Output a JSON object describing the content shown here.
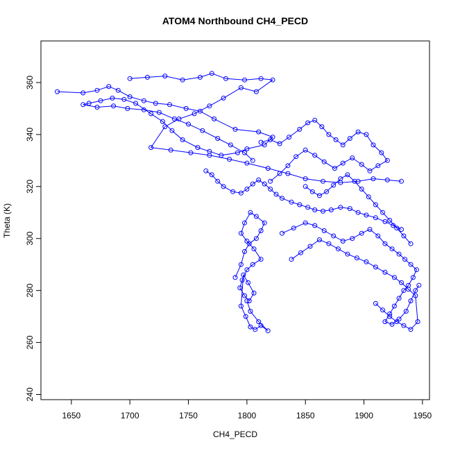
{
  "chart_data": {
    "type": "scatter",
    "title": "ATOM4 Northbound CH4_PECD",
    "xlabel": "CH4_PECD",
    "ylabel": "Theta (K)",
    "xlim": [
      1624,
      1956
    ],
    "ylim": [
      238,
      376
    ],
    "x_ticks": [
      "1650",
      "1700",
      "1750",
      "1800",
      "1850",
      "1900",
      "1950"
    ],
    "y_ticks": [
      "240",
      "260",
      "280",
      "300",
      "320",
      "340",
      "360"
    ],
    "grid": false,
    "legend": "none",
    "style": "points connected by lines",
    "color": "#0000ff",
    "series": [
      {
        "x": [
          1638,
          1660,
          1672,
          1682,
          1690,
          1700,
          1712,
          1722,
          1734,
          1748,
          1760,
          1772,
          1790,
          1810,
          1822,
          1815,
          1800,
          1792,
          1778,
          1768,
          1758,
          1745,
          1736,
          1728,
          1718,
          1705,
          1695,
          1685,
          1675,
          1665,
          1660,
          1672,
          1686,
          1698,
          1712,
          1725,
          1738,
          1750,
          1762,
          1775,
          1786,
          1798,
          1805
        ],
        "y": [
          356.5,
          356.0,
          357.0,
          358.5,
          357.0,
          354.5,
          353.0,
          352.0,
          351.5,
          350.0,
          349.0,
          346.0,
          342.0,
          341.0,
          339.0,
          336.0,
          334.5,
          333.0,
          332.0,
          333.5,
          335.0,
          338.0,
          341.5,
          345.0,
          348.0,
          352.0,
          353.5,
          354.0,
          353.0,
          352.0,
          351.5,
          350.5,
          351.0,
          350.0,
          349.5,
          348.5,
          346.0,
          344.0,
          341.5,
          338.5,
          336.0,
          333.0,
          330.0
        ]
      },
      {
        "x": [
          1700,
          1715,
          1730,
          1745,
          1760,
          1770,
          1782,
          1798,
          1812,
          1822,
          1808,
          1795,
          1780,
          1768,
          1755,
          1742,
          1730,
          1718,
          1735,
          1752,
          1768,
          1785,
          1800,
          1818,
          1835,
          1850,
          1865,
          1880,
          1895,
          1908,
          1920,
          1932
        ],
        "y": [
          361.5,
          362.0,
          362.5,
          361.0,
          362.0,
          363.5,
          361.5,
          361.0,
          361.5,
          361.0,
          356.5,
          358.0,
          354.0,
          351.0,
          348.0,
          346.0,
          343.0,
          335.0,
          334.0,
          333.0,
          332.0,
          330.5,
          329.0,
          327.0,
          325.0,
          323.0,
          322.0,
          321.5,
          322.0,
          323.0,
          322.5,
          322.0
        ]
      },
      {
        "x": [
          1765,
          1770,
          1775,
          1780,
          1788,
          1795,
          1800,
          1805,
          1810,
          1815,
          1820,
          1825,
          1830,
          1838,
          1845,
          1852,
          1858,
          1865,
          1872,
          1880,
          1888,
          1895,
          1902,
          1910,
          1918,
          1925,
          1932
        ],
        "y": [
          326.0,
          324.5,
          322.0,
          320.0,
          318.0,
          317.5,
          319.0,
          321.0,
          322.5,
          321.0,
          319.0,
          317.0,
          315.5,
          314.0,
          313.0,
          312.0,
          311.0,
          310.5,
          311.0,
          312.0,
          311.5,
          310.0,
          309.0,
          308.0,
          306.5,
          305.0,
          303.5
        ]
      },
      {
        "x": [
          1790,
          1795,
          1798,
          1802,
          1808,
          1812,
          1815,
          1808,
          1803,
          1798,
          1795,
          1800,
          1806,
          1812,
          1805,
          1800,
          1796,
          1794,
          1798,
          1802,
          1806,
          1801,
          1797,
          1795,
          1799,
          1803,
          1807,
          1812,
          1818,
          1810,
          1803,
          1800
        ],
        "y": [
          285.0,
          290.0,
          295.0,
          298.0,
          300.0,
          303.0,
          306.0,
          308.5,
          310.0,
          306.0,
          302.0,
          299.0,
          296.0,
          292.0,
          290.0,
          288.0,
          284.0,
          281.0,
          278.0,
          276.0,
          279.0,
          283.0,
          286.0,
          274.0,
          270.0,
          266.0,
          265.0,
          266.5,
          264.5,
          268.0,
          272.0,
          276.0
        ]
      },
      {
        "x": [
          1812,
          1820,
          1828,
          1836,
          1845,
          1852,
          1858,
          1864,
          1870,
          1876,
          1882,
          1888,
          1895,
          1902,
          1908,
          1915,
          1920,
          1912,
          1905,
          1898,
          1890,
          1882,
          1875,
          1866,
          1858,
          1850,
          1842,
          1835,
          1828,
          1820
        ],
        "y": [
          337.0,
          338.0,
          336.5,
          339.0,
          342.0,
          344.5,
          345.5,
          343.0,
          340.0,
          338.0,
          336.0,
          338.5,
          341.0,
          340.0,
          336.0,
          333.0,
          330.0,
          328.0,
          326.0,
          328.5,
          331.0,
          329.0,
          327.0,
          329.5,
          332.0,
          334.0,
          331.5,
          328.0,
          325.0,
          322.0
        ]
      },
      {
        "x": [
          1830,
          1840,
          1850,
          1858,
          1866,
          1874,
          1882,
          1890,
          1898,
          1905,
          1912,
          1918,
          1924,
          1930,
          1935,
          1940,
          1945,
          1942,
          1938,
          1934,
          1930,
          1926,
          1922,
          1918,
          1924,
          1930,
          1936,
          1940,
          1944,
          1947
        ],
        "y": [
          302.0,
          304.0,
          306.0,
          305.0,
          303.0,
          301.0,
          299.0,
          300.0,
          302.0,
          303.5,
          301.0,
          298.0,
          296.0,
          294.0,
          292.0,
          290.0,
          288.0,
          285.0,
          282.0,
          280.0,
          277.0,
          274.0,
          271.0,
          268.0,
          267.0,
          269.0,
          272.0,
          276.0,
          280.0,
          282.0
        ]
      },
      {
        "x": [
          1838,
          1846,
          1854,
          1862,
          1870,
          1878,
          1886,
          1894,
          1902,
          1910,
          1918,
          1926,
          1932,
          1938,
          1944,
          1946,
          1940,
          1934,
          1928,
          1922,
          1916,
          1910
        ],
        "y": [
          292.0,
          294.5,
          297.0,
          299.5,
          298.0,
          296.0,
          294.0,
          292.5,
          291.0,
          289.0,
          287.0,
          285.0,
          283.0,
          280.5,
          278.0,
          268.0,
          265.0,
          266.5,
          268.0,
          270.0,
          272.5,
          275.0
        ]
      },
      {
        "x": [
          1850,
          1856,
          1862,
          1868,
          1874,
          1880,
          1886,
          1892,
          1898,
          1904,
          1910,
          1916,
          1922,
          1928,
          1934,
          1940
        ],
        "y": [
          320.0,
          318.0,
          316.5,
          318.0,
          320.5,
          323.0,
          324.5,
          322.0,
          319.0,
          316.0,
          313.0,
          310.0,
          307.0,
          304.0,
          301.0,
          298.0
        ]
      }
    ]
  }
}
